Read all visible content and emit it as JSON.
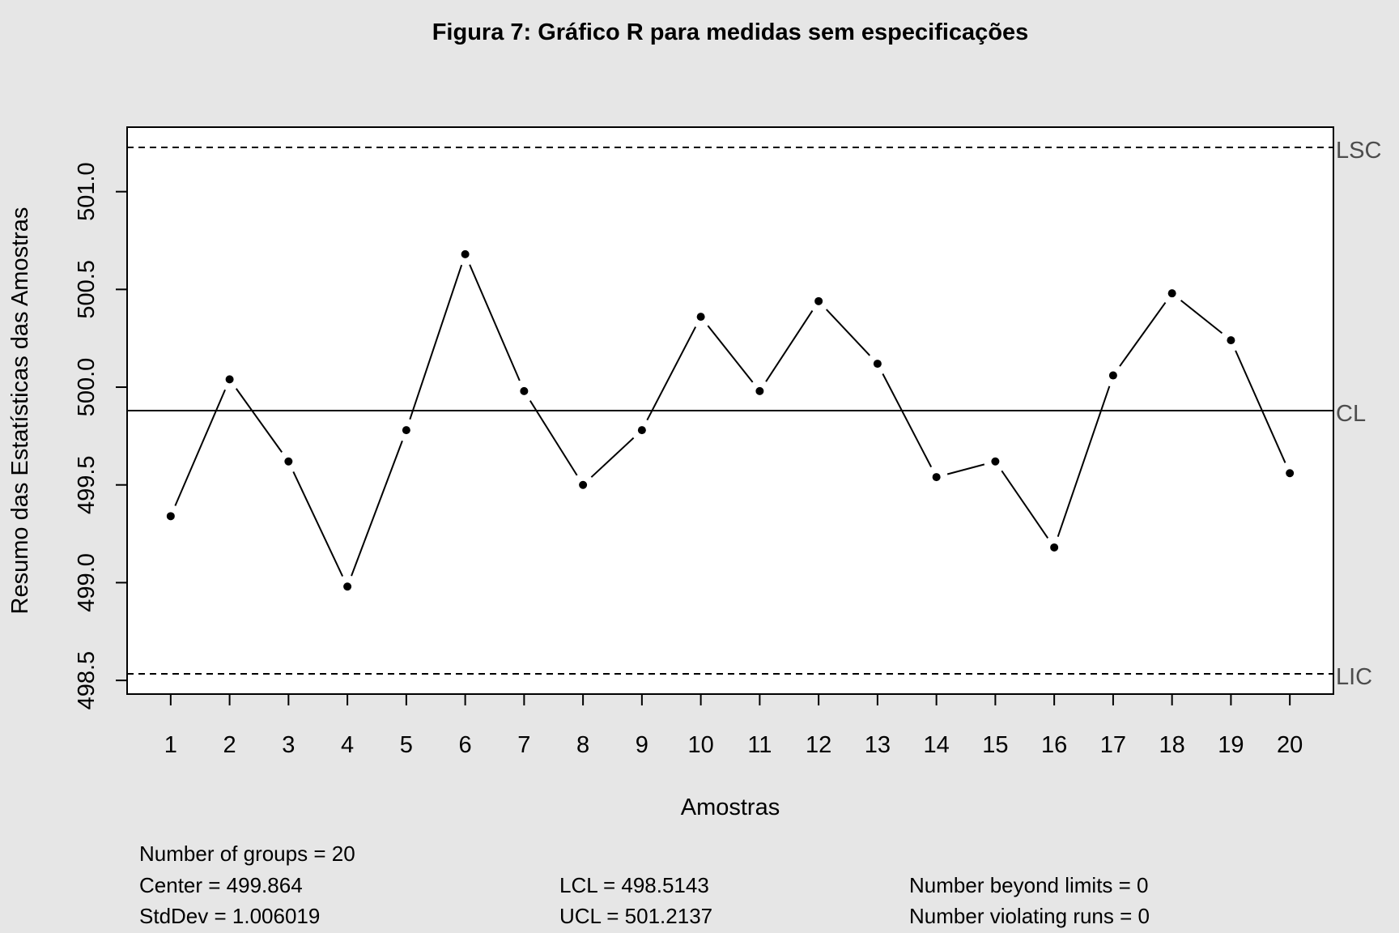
{
  "chart_data": {
    "type": "line",
    "title": "Figura 7: Gráfico R para medidas sem especificações",
    "xlabel": "Amostras",
    "ylabel": "Resumo das Estatísticas das Amostras",
    "x": [
      1,
      2,
      3,
      4,
      5,
      6,
      7,
      8,
      9,
      10,
      11,
      12,
      13,
      14,
      15,
      16,
      17,
      18,
      19,
      20
    ],
    "x_tick_labels": [
      "1",
      "2",
      "3",
      "4",
      "5",
      "6",
      "7",
      "8",
      "9",
      "10",
      "11",
      "12",
      "13",
      "14",
      "15",
      "16",
      "17",
      "18",
      "19",
      "20"
    ],
    "y": [
      499.34,
      500.04,
      499.62,
      498.98,
      499.78,
      500.68,
      499.98,
      499.5,
      499.78,
      500.36,
      499.98,
      500.44,
      500.12,
      499.54,
      499.62,
      499.18,
      500.06,
      500.48,
      500.24,
      499.56
    ],
    "y_ticks": [
      498.5,
      499.0,
      499.5,
      500.0,
      500.5,
      501.0
    ],
    "y_tick_labels": [
      "498.5",
      "499.0",
      "499.5",
      "500.0",
      "500.5",
      "501.0"
    ],
    "ylim": [
      498.43,
      501.33
    ],
    "xlim": [
      0.26,
      20.74
    ],
    "grid": false,
    "control_limits": [
      {
        "label": "LSC",
        "value": 501.2137,
        "style": "dashed"
      },
      {
        "label": "CL",
        "value": 499.864,
        "style": "solid"
      },
      {
        "label": "LIC",
        "value": 498.5143,
        "style": "dashed"
      }
    ],
    "stats": {
      "number_of_groups": "Number of groups = 20",
      "center": "Center = 499.864",
      "stddev": "StdDev = 1.006019",
      "lcl": "LCL = 498.5143",
      "ucl": "UCL = 501.2137",
      "beyond_limits": "Number beyond limits = 0",
      "violating_runs": "Number violating runs = 0"
    }
  }
}
